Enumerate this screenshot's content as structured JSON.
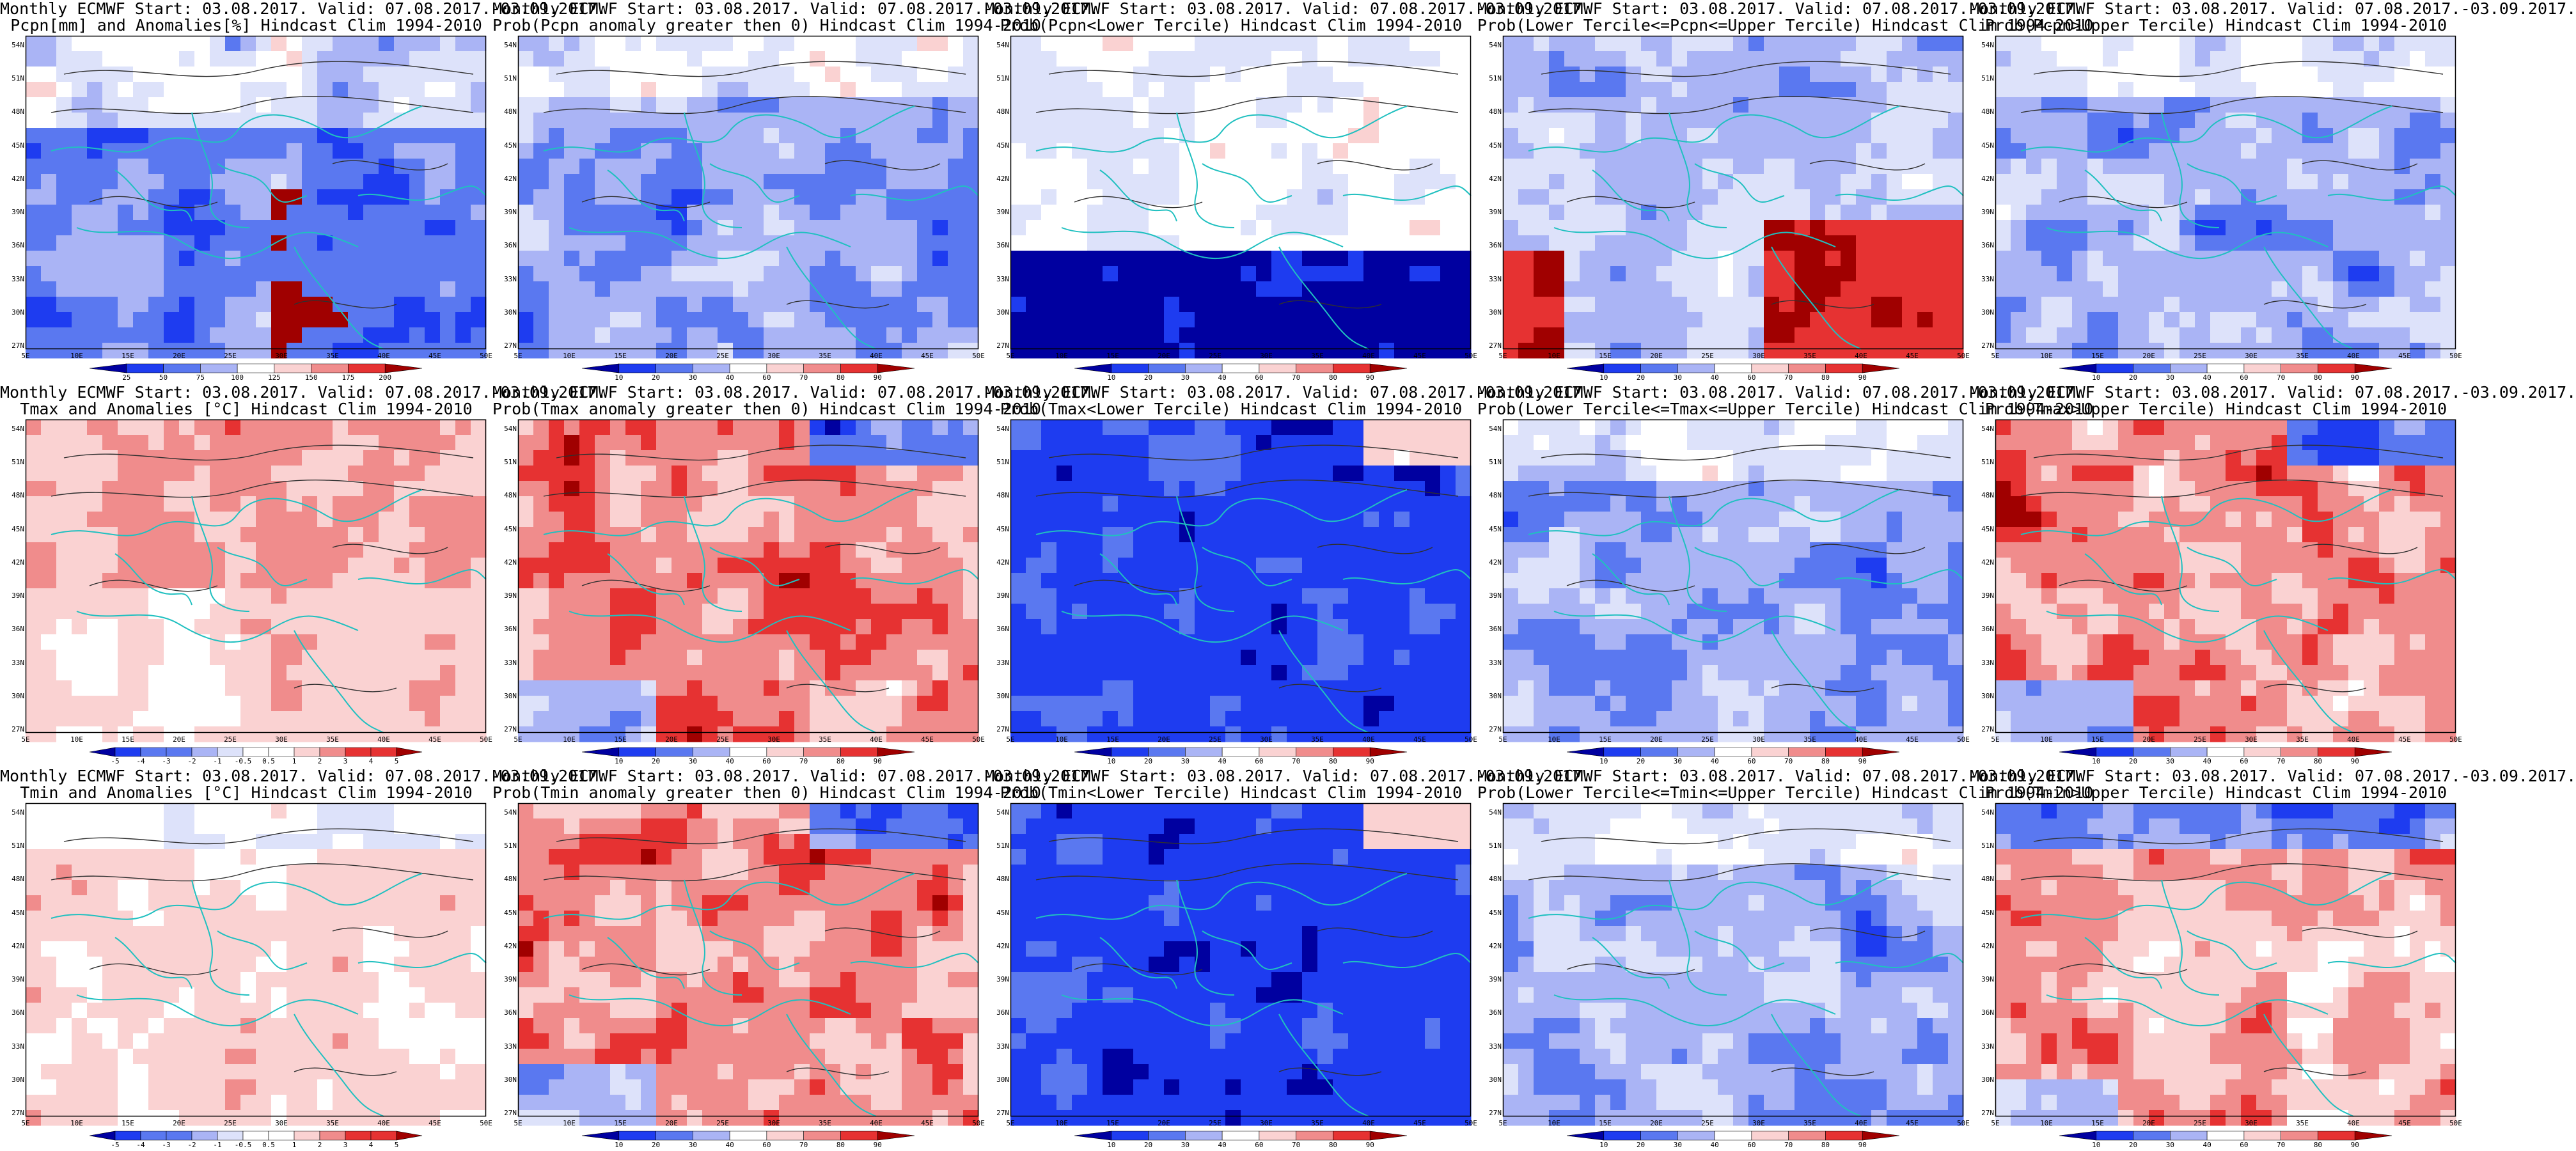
{
  "figure": {
    "lat_labels": [
      "54N",
      "51N",
      "48N",
      "45N",
      "42N",
      "39N",
      "36N",
      "33N",
      "30N",
      "27N"
    ],
    "lon_labels": [
      "5E",
      "10E",
      "15E",
      "20E",
      "25E",
      "30E",
      "35E",
      "40E",
      "45E",
      "50E"
    ],
    "colors": {
      "deep_blue": "#0000a0",
      "blue": "#1e3cf0",
      "mid_blue": "#5a78f0",
      "light_blue": "#aab4f5",
      "pale_blue": "#dde2fa",
      "white": "#ffffff",
      "pale_red": "#fad2d2",
      "light_red": "#f08c8c",
      "red": "#e63232",
      "deep_red": "#a00000",
      "coast": "#20c0c0",
      "contour": "#303030"
    },
    "rows": [
      {
        "panels": [
          {
            "title1": "Monthly ECMWF Start: 03.08.2017. Valid: 07.08.2017.-03.09.2017.",
            "title2": "Pcpn[mm] and Anomalies[%] Hindcast Clim 1994-2010",
            "field": "pcpn_anom",
            "cbar": [
              "25",
              "50",
              "75",
              "100",
              "125",
              "150",
              "175",
              "200"
            ]
          },
          {
            "title1": "Monthly ECMWF Start: 03.08.2017. Valid: 07.08.2017.-03.09.2017.",
            "title2": "Prob(Pcpn anomaly greater then 0) Hindcast Clim 1994-2010",
            "field": "prob_low",
            "cbar": [
              "10",
              "20",
              "30",
              "40",
              "60",
              "70",
              "80",
              "90"
            ]
          },
          {
            "title1": "Monthly ECMWF Start: 03.08.2017. Valid: 07.08.2017.-03.09.2017.",
            "title2": "Prob(Pcpn<Lower Tercile) Hindcast Clim 1994-2010",
            "field": "prob_mixed_south_blue",
            "cbar": [
              "10",
              "20",
              "30",
              "40",
              "60",
              "70",
              "80",
              "90"
            ]
          },
          {
            "title1": "Monthly ECMWF Start: 03.08.2017. Valid: 07.08.2017.-03.09.2017.",
            "title2": "Prob(Lower Tercile<=Pcpn<=Upper Tercile) Hindcast Clim 1994-2010",
            "field": "prob_mixed_south_red",
            "cbar": [
              "10",
              "20",
              "30",
              "40",
              "60",
              "70",
              "80",
              "90"
            ]
          },
          {
            "title1": "Monthly ECMWF Start: 03.08.2017. Valid: 07.08.2017.-03.09.2017.",
            "title2": "Prob(Pcpn>Upper Tercile) Hindcast Clim 1994-2010",
            "field": "prob_low",
            "cbar": [
              "10",
              "20",
              "30",
              "40",
              "60",
              "70",
              "80",
              "90"
            ]
          }
        ]
      },
      {
        "panels": [
          {
            "title1": "Monthly ECMWF Start: 03.08.2017. Valid: 07.08.2017.-03.09.2017.",
            "title2": "Tmax and Anomalies [°C] Hindcast Clim 1994-2010",
            "field": "temp_anom",
            "cbar": [
              "-5",
              "-4",
              "-3",
              "-2",
              "-1",
              "-0.5",
              "0.5",
              "1",
              "2",
              "3",
              "4",
              "5"
            ]
          },
          {
            "title1": "Monthly ECMWF Start: 03.08.2017. Valid: 07.08.2017.-03.09.2017.",
            "title2": "Prob(Tmax anomaly greater then 0) Hindcast Clim 1994-2010",
            "field": "prob_high",
            "cbar": [
              "10",
              "20",
              "30",
              "40",
              "60",
              "70",
              "80",
              "90"
            ]
          },
          {
            "title1": "Monthly ECMWF Start: 03.08.2017. Valid: 07.08.2017.-03.09.2017.",
            "title2": "Prob(Tmax<Lower Tercile) Hindcast Clim 1994-2010",
            "field": "prob_verylow",
            "cbar": [
              "10",
              "20",
              "30",
              "40",
              "60",
              "70",
              "80",
              "90"
            ]
          },
          {
            "title1": "Monthly ECMWF Start: 03.08.2017. Valid: 07.08.2017.-03.09.2017.",
            "title2": "Prob(Lower Tercile<=Tmax<=Upper Tercile) Hindcast Clim 1994-2010",
            "field": "prob_low",
            "cbar": [
              "10",
              "20",
              "30",
              "40",
              "60",
              "70",
              "80",
              "90"
            ]
          },
          {
            "title1": "Monthly ECMWF Start: 03.08.2017. Valid: 07.08.2017.-03.09.2017.",
            "title2": "Prob(Tmax>Upper Tercile) Hindcast Clim 1994-2010",
            "field": "prob_high",
            "cbar": [
              "10",
              "20",
              "30",
              "40",
              "60",
              "70",
              "80",
              "90"
            ]
          }
        ]
      },
      {
        "panels": [
          {
            "title1": "Monthly ECMWF Start: 03.08.2017. Valid: 07.08.2017.-03.09.2017.",
            "title2": "Tmin and Anomalies [°C] Hindcast Clim 1994-2010",
            "field": "temp_anom_weak",
            "cbar": [
              "-5",
              "-4",
              "-3",
              "-2",
              "-1",
              "-0.5",
              "0.5",
              "1",
              "2",
              "3",
              "4",
              "5"
            ]
          },
          {
            "title1": "Monthly ECMWF Start: 03.08.2017. Valid: 07.08.2017.-03.09.2017.",
            "title2": "Prob(Tmin anomaly greater then 0) Hindcast Clim 1994-2010",
            "field": "prob_high",
            "cbar": [
              "10",
              "20",
              "30",
              "40",
              "60",
              "70",
              "80",
              "90"
            ]
          },
          {
            "title1": "Monthly ECMWF Start: 03.08.2017. Valid: 07.08.2017.-03.09.2017.",
            "title2": "Prob(Tmin<Lower Tercile) Hindcast Clim 1994-2010",
            "field": "prob_verylow",
            "cbar": [
              "10",
              "20",
              "30",
              "40",
              "60",
              "70",
              "80",
              "90"
            ]
          },
          {
            "title1": "Monthly ECMWF Start: 03.08.2017. Valid: 07.08.2017.-03.09.2017.",
            "title2": "Prob(Lower Tercile<=Tmin<=Upper Tercile) Hindcast Clim 1994-2010",
            "field": "prob_low",
            "cbar": [
              "10",
              "20",
              "30",
              "40",
              "60",
              "70",
              "80",
              "90"
            ]
          },
          {
            "title1": "Monthly ECMWF Start: 03.08.2017. Valid: 07.08.2017.-03.09.2017.",
            "title2": "Prob(Tmin>Upper Tercile) Hindcast Clim 1994-2010",
            "field": "prob_high_mixed",
            "cbar": [
              "10",
              "20",
              "30",
              "40",
              "60",
              "70",
              "80",
              "90"
            ]
          }
        ]
      }
    ]
  }
}
